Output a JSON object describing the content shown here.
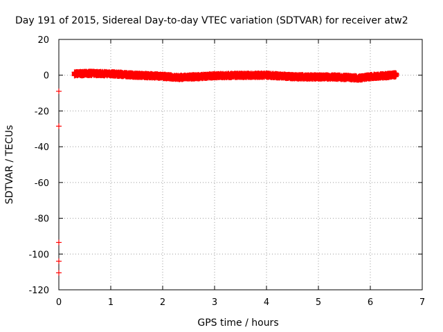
{
  "chart_data": {
    "type": "scatter",
    "title": "Day 191 of 2015, Sidereal Day-to-day VTEC variation (SDTVAR) for receiver atw2",
    "xlabel": "GPS time / hours",
    "ylabel": "SDTVAR / TECUs",
    "xlim": [
      0,
      7
    ],
    "ylim": [
      -120,
      20
    ],
    "x_ticks": [
      "0",
      "1",
      "2",
      "3",
      "4",
      "5",
      "6",
      "7"
    ],
    "y_ticks": [
      "20",
      "0",
      "-20",
      "-40",
      "-60",
      "-80",
      "-100",
      "-120"
    ],
    "grid": true,
    "marker": "plus",
    "series_color": "#ff0000",
    "outliers": [
      {
        "x": 0.0,
        "y": -9
      },
      {
        "x": 0.0,
        "y": -28.5
      },
      {
        "x": 0.0,
        "y": -93.5
      },
      {
        "x": 0.0,
        "y": -104
      },
      {
        "x": 0.0,
        "y": -110.5
      }
    ],
    "trend": [
      {
        "x": 0.3,
        "y": 0.8
      },
      {
        "x": 0.6,
        "y": 1.0
      },
      {
        "x": 1.0,
        "y": 0.8
      },
      {
        "x": 1.5,
        "y": 0.0
      },
      {
        "x": 2.0,
        "y": -0.6
      },
      {
        "x": 2.3,
        "y": -1.3
      },
      {
        "x": 2.7,
        "y": -0.8
      },
      {
        "x": 3.0,
        "y": -0.3
      },
      {
        "x": 3.5,
        "y": -0.1
      },
      {
        "x": 4.0,
        "y": 0.0
      },
      {
        "x": 4.5,
        "y": -0.8
      },
      {
        "x": 4.8,
        "y": -1.0
      },
      {
        "x": 5.3,
        "y": -1.0
      },
      {
        "x": 5.8,
        "y": -1.6
      },
      {
        "x": 6.0,
        "y": -0.8
      },
      {
        "x": 6.3,
        "y": -0.3
      },
      {
        "x": 6.5,
        "y": 0.3
      }
    ],
    "trend_band": 2.2
  }
}
